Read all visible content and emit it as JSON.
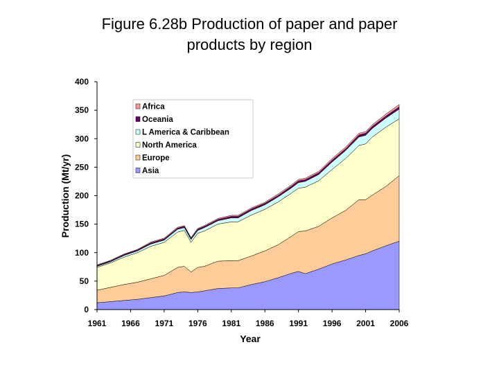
{
  "title_line1": "Figure 6.28b Production of paper and paper",
  "title_line2": "products by region",
  "chart_data": {
    "type": "area",
    "stacked": true,
    "xlabel": "Year",
    "ylabel": "Production (Mt/yr)",
    "xlim": [
      1961,
      2006
    ],
    "ylim": [
      0,
      400
    ],
    "xticks": [
      "1961",
      "1966",
      "1971",
      "1976",
      "1981",
      "1986",
      "1991",
      "1996",
      "2001",
      "2006"
    ],
    "yticks": [
      "0",
      "50",
      "100",
      "150",
      "200",
      "250",
      "300",
      "350",
      "400"
    ],
    "grid": false,
    "legend_position": "top-left",
    "x": [
      1961,
      1963,
      1965,
      1967,
      1969,
      1971,
      1973,
      1974,
      1975,
      1976,
      1977,
      1979,
      1981,
      1982,
      1984,
      1986,
      1988,
      1990,
      1991,
      1992,
      1994,
      1996,
      1998,
      2000,
      2001,
      2002,
      2004,
      2006
    ],
    "series": [
      {
        "name": "Asia",
        "color": "#9999ff",
        "values": [
          12,
          14,
          16,
          18,
          21,
          24,
          30,
          31,
          30,
          31,
          33,
          37,
          38,
          38,
          44,
          49,
          56,
          64,
          67,
          63,
          71,
          80,
          87,
          95,
          98,
          103,
          112,
          120
        ]
      },
      {
        "name": "Europe",
        "color": "#ffcc99",
        "values": [
          22,
          25,
          28,
          30,
          33,
          36,
          44,
          45,
          36,
          43,
          43,
          48,
          48,
          48,
          50,
          54,
          58,
          65,
          70,
          75,
          75,
          81,
          87,
          98,
          95,
          98,
          104,
          115
        ]
      },
      {
        "name": "North America",
        "color": "#ffffcc",
        "values": [
          40,
          43,
          48,
          52,
          57,
          58,
          62,
          63,
          52,
          60,
          62,
          65,
          68,
          68,
          72,
          73,
          75,
          76,
          76,
          77,
          80,
          85,
          91,
          95,
          98,
          102,
          104,
          100
        ]
      },
      {
        "name": "L America & Caribbean",
        "color": "#ccffff",
        "values": [
          2,
          2,
          3,
          3,
          4,
          4,
          5,
          5,
          5,
          5,
          6,
          6,
          7,
          7,
          8,
          8,
          9,
          9,
          10,
          10,
          11,
          13,
          14,
          15,
          15,
          15,
          16,
          17
        ]
      },
      {
        "name": "Oceania",
        "color": "#660066",
        "values": [
          1.5,
          1.5,
          1.5,
          1.5,
          2,
          2,
          2,
          2,
          2,
          2,
          2,
          2,
          2.5,
          2.5,
          2.5,
          2.5,
          2.5,
          3,
          3,
          3,
          3,
          3,
          3,
          3.5,
          3.5,
          3.5,
          3.5,
          4
        ]
      },
      {
        "name": "Africa",
        "color": "#ff9999",
        "values": [
          1,
          1,
          1,
          1,
          1.5,
          1.5,
          1.5,
          1.5,
          1.5,
          1.5,
          1.5,
          2,
          2,
          2,
          2,
          2,
          2.5,
          2.5,
          2.5,
          2.5,
          2.5,
          3,
          3,
          3,
          3,
          3,
          3.5,
          4
        ]
      }
    ]
  }
}
